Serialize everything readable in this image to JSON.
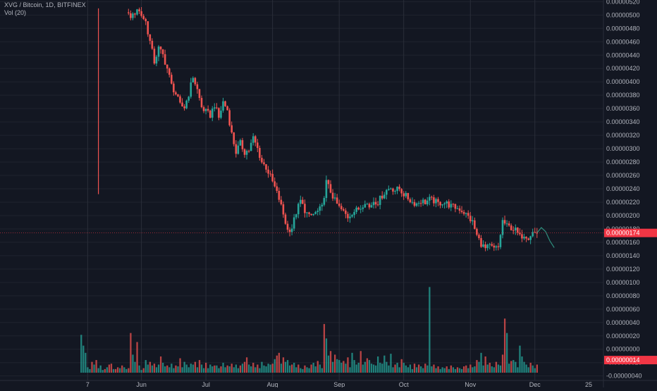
{
  "legend": {
    "symbol": "XVG / Bitcoin",
    "sep1": ", ",
    "interval": "1D",
    "sep2": ", ",
    "exchange": "BITFINEX",
    "volume_label": "Vol (20)"
  },
  "colors": {
    "background": "#131722",
    "up": "#26a69a",
    "down": "#ef5350",
    "grid": "#2a2e39",
    "axis_text": "#b2b5be",
    "price_badge": "#f23645",
    "forecast": "#2e8f7e"
  },
  "chart_data": {
    "type": "candlestick",
    "title": "XVG / Bitcoin, 1D, BITFINEX",
    "x_tick_labels": [
      "7",
      "Jun",
      "Jul",
      "Aug",
      "Sep",
      "Oct",
      "Nov",
      "Dec",
      "25"
    ],
    "x_tick_days": [
      7,
      32,
      62,
      93,
      124,
      154,
      185,
      215,
      240
    ],
    "price_axis": {
      "ticks": [
        "0.00000520",
        "0.00000500",
        "0.00000480",
        "0.00000460",
        "0.00000440",
        "0.00000420",
        "0.00000400",
        "0.00000380",
        "0.00000360",
        "0.00000340",
        "0.00000320",
        "0.00000300",
        "0.00000280",
        "0.00000260",
        "0.00000240",
        "0.00000220",
        "0.00000200",
        "0.00000180",
        "0.00000160",
        "0.00000140",
        "0.00000120",
        "0.00000100",
        "0.00000080",
        "0.00000060",
        "0.00000040",
        "0.00000020",
        "0.00000000",
        "-0.00000020",
        "-0.00000040"
      ],
      "tick_values": [
        520,
        500,
        480,
        460,
        440,
        420,
        400,
        380,
        360,
        340,
        320,
        300,
        280,
        260,
        240,
        220,
        200,
        180,
        160,
        140,
        120,
        100,
        80,
        60,
        40,
        20,
        0,
        -20,
        -40
      ],
      "range": [
        -40,
        525
      ],
      "unit_scale": "1e-8 BTC"
    },
    "last_price_label": "0.00000174",
    "last_price": 174,
    "volume_badge_label": "0.00000014",
    "volume_badge_value": 14,
    "spike": {
      "day": 12,
      "high": 510,
      "low": 232
    },
    "close_series": [
      [
        26,
        500
      ],
      [
        28,
        498
      ],
      [
        30,
        510
      ],
      [
        32,
        500
      ],
      [
        34,
        490
      ],
      [
        36,
        460
      ],
      [
        38,
        430
      ],
      [
        40,
        450
      ],
      [
        42,
        440
      ],
      [
        44,
        420
      ],
      [
        46,
        395
      ],
      [
        48,
        382
      ],
      [
        50,
        365
      ],
      [
        52,
        362
      ],
      [
        54,
        382
      ],
      [
        56,
        408
      ],
      [
        58,
        388
      ],
      [
        60,
        362
      ],
      [
        62,
        355
      ],
      [
        64,
        350
      ],
      [
        66,
        366
      ],
      [
        68,
        346
      ],
      [
        70,
        370
      ],
      [
        72,
        358
      ],
      [
        74,
        322
      ],
      [
        76,
        295
      ],
      [
        78,
        308
      ],
      [
        80,
        295
      ],
      [
        82,
        298
      ],
      [
        84,
        316
      ],
      [
        86,
        300
      ],
      [
        88,
        280
      ],
      [
        90,
        272
      ],
      [
        92,
        258
      ],
      [
        94,
        242
      ],
      [
        96,
        225
      ],
      [
        98,
        202
      ],
      [
        100,
        178
      ],
      [
        102,
        182
      ],
      [
        104,
        205
      ],
      [
        106,
        222
      ],
      [
        108,
        208
      ],
      [
        110,
        198
      ],
      [
        112,
        202
      ],
      [
        114,
        206
      ],
      [
        116,
        212
      ],
      [
        118,
        250
      ],
      [
        120,
        236
      ],
      [
        122,
        222
      ],
      [
        124,
        212
      ],
      [
        126,
        205
      ],
      [
        128,
        198
      ],
      [
        130,
        205
      ],
      [
        132,
        208
      ],
      [
        134,
        212
      ],
      [
        136,
        222
      ],
      [
        138,
        212
      ],
      [
        140,
        222
      ],
      [
        142,
        220
      ],
      [
        144,
        230
      ],
      [
        146,
        238
      ],
      [
        148,
        242
      ],
      [
        150,
        238
      ],
      [
        152,
        240
      ],
      [
        154,
        232
      ],
      [
        156,
        226
      ],
      [
        158,
        220
      ],
      [
        160,
        218
      ],
      [
        162,
        222
      ],
      [
        164,
        220
      ],
      [
        166,
        224
      ],
      [
        168,
        222
      ],
      [
        170,
        218
      ],
      [
        172,
        220
      ],
      [
        174,
        218
      ],
      [
        176,
        214
      ],
      [
        178,
        212
      ],
      [
        180,
        210
      ],
      [
        182,
        205
      ],
      [
        184,
        198
      ],
      [
        186,
        190
      ],
      [
        188,
        170
      ],
      [
        190,
        158
      ],
      [
        192,
        150
      ],
      [
        194,
        154
      ],
      [
        196,
        150
      ],
      [
        198,
        152
      ],
      [
        200,
        192
      ],
      [
        202,
        184
      ],
      [
        204,
        182
      ],
      [
        206,
        178
      ],
      [
        208,
        168
      ],
      [
        210,
        172
      ],
      [
        212,
        168
      ],
      [
        214,
        175
      ],
      [
        216,
        174
      ]
    ],
    "forecast": [
      [
        216,
        174
      ],
      [
        218,
        182
      ],
      [
        220,
        176
      ],
      [
        222,
        162
      ],
      [
        224,
        152
      ]
    ],
    "volume": [
      [
        4,
        42
      ],
      [
        5,
        30
      ],
      [
        6,
        22
      ],
      [
        7,
        6
      ],
      [
        8,
        4
      ],
      [
        9,
        12
      ],
      [
        10,
        9
      ],
      [
        11,
        14
      ],
      [
        12,
        5
      ],
      [
        13,
        8
      ],
      [
        14,
        3
      ],
      [
        15,
        4
      ],
      [
        16,
        6
      ],
      [
        17,
        9
      ],
      [
        18,
        10
      ],
      [
        19,
        4
      ],
      [
        20,
        4
      ],
      [
        21,
        6
      ],
      [
        22,
        5
      ],
      [
        23,
        8
      ],
      [
        24,
        6
      ],
      [
        25,
        4
      ],
      [
        26,
        5
      ],
      [
        27,
        44
      ],
      [
        28,
        20
      ],
      [
        29,
        12
      ],
      [
        30,
        34
      ],
      [
        31,
        8
      ],
      [
        32,
        3
      ],
      [
        33,
        5
      ],
      [
        34,
        14
      ],
      [
        35,
        9
      ],
      [
        36,
        12
      ],
      [
        37,
        8
      ],
      [
        38,
        10
      ],
      [
        39,
        6
      ],
      [
        40,
        9
      ],
      [
        41,
        18
      ],
      [
        42,
        11
      ],
      [
        43,
        7
      ],
      [
        44,
        8
      ],
      [
        45,
        6
      ],
      [
        46,
        10
      ],
      [
        47,
        5
      ],
      [
        48,
        8
      ],
      [
        49,
        7
      ],
      [
        50,
        16
      ],
      [
        51,
        6
      ],
      [
        52,
        12
      ],
      [
        53,
        9
      ],
      [
        54,
        6
      ],
      [
        55,
        10
      ],
      [
        56,
        9
      ],
      [
        57,
        12
      ],
      [
        58,
        6
      ],
      [
        59,
        14
      ],
      [
        60,
        9
      ],
      [
        61,
        5
      ],
      [
        62,
        11
      ],
      [
        63,
        5
      ],
      [
        64,
        9
      ],
      [
        65,
        7
      ],
      [
        66,
        8
      ],
      [
        67,
        8
      ],
      [
        68,
        5
      ],
      [
        69,
        7
      ],
      [
        70,
        11
      ],
      [
        71,
        6
      ],
      [
        72,
        8
      ],
      [
        73,
        7
      ],
      [
        74,
        10
      ],
      [
        75,
        6
      ],
      [
        76,
        9
      ],
      [
        77,
        5
      ],
      [
        78,
        8
      ],
      [
        79,
        10
      ],
      [
        80,
        12
      ],
      [
        81,
        17
      ],
      [
        82,
        9
      ],
      [
        83,
        7
      ],
      [
        84,
        11
      ],
      [
        85,
        6
      ],
      [
        86,
        9
      ],
      [
        87,
        5
      ],
      [
        88,
        12
      ],
      [
        89,
        8
      ],
      [
        90,
        7
      ],
      [
        91,
        10
      ],
      [
        92,
        9
      ],
      [
        93,
        10
      ],
      [
        94,
        15
      ],
      [
        95,
        19
      ],
      [
        96,
        22
      ],
      [
        97,
        10
      ],
      [
        98,
        17
      ],
      [
        99,
        12
      ],
      [
        100,
        14
      ],
      [
        101,
        8
      ],
      [
        102,
        9
      ],
      [
        103,
        11
      ],
      [
        104,
        6
      ],
      [
        105,
        9
      ],
      [
        106,
        5
      ],
      [
        107,
        4
      ],
      [
        108,
        8
      ],
      [
        109,
        6
      ],
      [
        110,
        5
      ],
      [
        111,
        9
      ],
      [
        112,
        11
      ],
      [
        113,
        7
      ],
      [
        114,
        13
      ],
      [
        115,
        9
      ],
      [
        116,
        5
      ],
      [
        117,
        54
      ],
      [
        118,
        38
      ],
      [
        119,
        19
      ],
      [
        120,
        24
      ],
      [
        121,
        12
      ],
      [
        122,
        20
      ],
      [
        123,
        15
      ],
      [
        124,
        14
      ],
      [
        125,
        11
      ],
      [
        126,
        13
      ],
      [
        127,
        10
      ],
      [
        128,
        17
      ],
      [
        129,
        6
      ],
      [
        130,
        22
      ],
      [
        131,
        14
      ],
      [
        132,
        9
      ],
      [
        133,
        11
      ],
      [
        134,
        24
      ],
      [
        135,
        9
      ],
      [
        136,
        12
      ],
      [
        137,
        16
      ],
      [
        138,
        14
      ],
      [
        139,
        10
      ],
      [
        140,
        9
      ],
      [
        141,
        8
      ],
      [
        142,
        18
      ],
      [
        143,
        11
      ],
      [
        144,
        10
      ],
      [
        145,
        19
      ],
      [
        146,
        12
      ],
      [
        147,
        8
      ],
      [
        148,
        21
      ],
      [
        149,
        6
      ],
      [
        150,
        9
      ],
      [
        151,
        11
      ],
      [
        152,
        6
      ],
      [
        153,
        15
      ],
      [
        154,
        11
      ],
      [
        155,
        8
      ],
      [
        156,
        6
      ],
      [
        157,
        9
      ],
      [
        158,
        4
      ],
      [
        159,
        10
      ],
      [
        160,
        6
      ],
      [
        161,
        9
      ],
      [
        162,
        7
      ],
      [
        163,
        5
      ],
      [
        164,
        10
      ],
      [
        165,
        8
      ],
      [
        166,
        95
      ],
      [
        167,
        7
      ],
      [
        168,
        9
      ],
      [
        169,
        5
      ],
      [
        170,
        7
      ],
      [
        171,
        4
      ],
      [
        172,
        6
      ],
      [
        173,
        5
      ],
      [
        174,
        7
      ],
      [
        175,
        4
      ],
      [
        176,
        8
      ],
      [
        177,
        6
      ],
      [
        178,
        4
      ],
      [
        179,
        6
      ],
      [
        180,
        5
      ],
      [
        181,
        4
      ],
      [
        182,
        7
      ],
      [
        183,
        8
      ],
      [
        184,
        5
      ],
      [
        185,
        9
      ],
      [
        186,
        6
      ],
      [
        187,
        7
      ],
      [
        188,
        14
      ],
      [
        189,
        12
      ],
      [
        190,
        22
      ],
      [
        191,
        8
      ],
      [
        192,
        18
      ],
      [
        193,
        9
      ],
      [
        194,
        11
      ],
      [
        195,
        7
      ],
      [
        196,
        6
      ],
      [
        197,
        12
      ],
      [
        198,
        9
      ],
      [
        199,
        8
      ],
      [
        200,
        20
      ],
      [
        201,
        60
      ],
      [
        202,
        44
      ],
      [
        203,
        10
      ],
      [
        204,
        13
      ],
      [
        205,
        14
      ],
      [
        206,
        12
      ],
      [
        207,
        6
      ],
      [
        208,
        30
      ],
      [
        209,
        18
      ],
      [
        210,
        12
      ],
      [
        211,
        9
      ],
      [
        212,
        6
      ],
      [
        213,
        11
      ],
      [
        214,
        8
      ],
      [
        215,
        5
      ],
      [
        216,
        9
      ]
    ]
  }
}
